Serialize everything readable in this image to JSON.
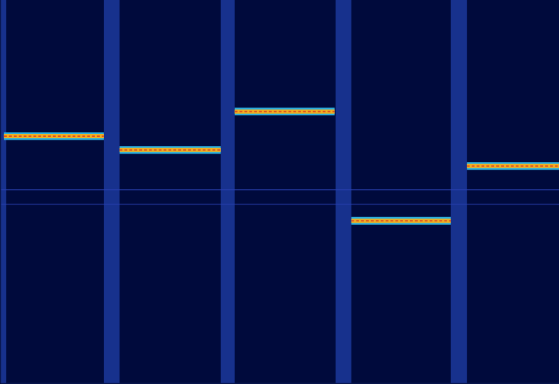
{
  "chart_data": {
    "type": "spectrogram",
    "xlim": [
      0,
      100
    ],
    "ylim": [
      0,
      100
    ],
    "xticks": [],
    "yticks": [],
    "tick_labels": false,
    "grid": false,
    "color": "#f0b020",
    "hops": [
      {
        "x": [
          0.6,
          18.5
        ],
        "y": 64.5
      },
      {
        "x": [
          21.3,
          39.4
        ],
        "y": 60.9
      },
      {
        "x": [
          41.9,
          59.8
        ],
        "y": 70.9
      },
      {
        "x": [
          62.8,
          80.6
        ],
        "y": 42.4
      },
      {
        "x": [
          83.5,
          100
        ],
        "y": 56.7
      }
    ],
    "noise_bands": [
      [
        0,
        1
      ],
      [
        18.5,
        21.3
      ],
      [
        39.4,
        41.9
      ],
      [
        60,
        62.8
      ],
      [
        80.6,
        83.5
      ]
    ],
    "spurs": [
      50.5,
      46.7
    ]
  }
}
